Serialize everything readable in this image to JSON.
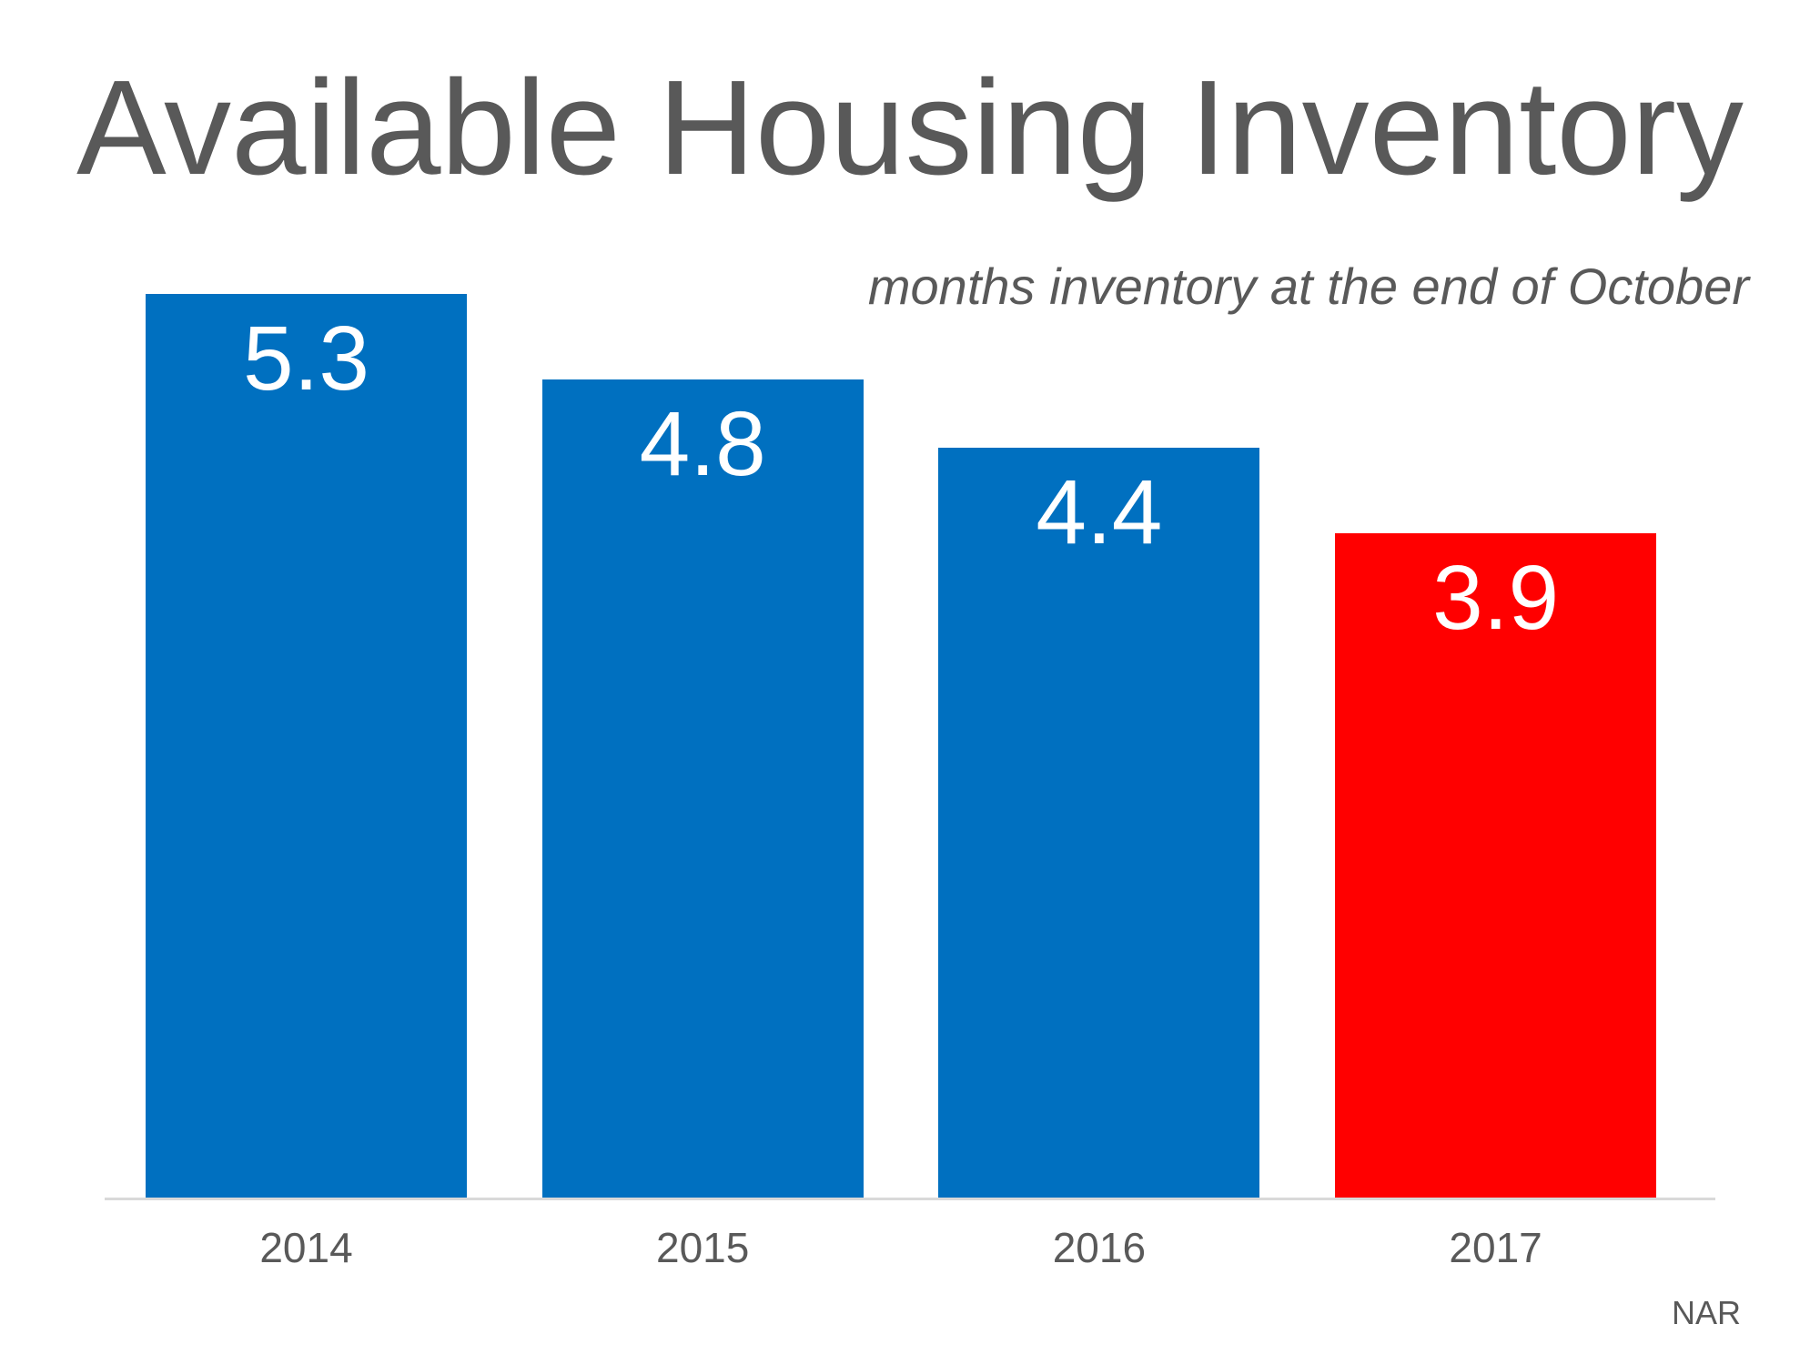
{
  "title": "Available Housing Inventory",
  "subtitle": "months inventory at the end of October",
  "source": "NAR",
  "colors": {
    "bar_blue": "#0070C0",
    "bar_red": "#FF0000",
    "text_gray": "#595959",
    "axis_line": "#D9D9D9",
    "value_label": "#FFFFFF",
    "background": "#FFFFFF"
  },
  "chart_data": {
    "type": "bar",
    "title": "Available Housing Inventory",
    "subtitle": "months inventory at the end of October",
    "categories": [
      "2014",
      "2015",
      "2016",
      "2017"
    ],
    "values": [
      5.3,
      4.8,
      4.4,
      3.9
    ],
    "data_labels": [
      "5.3",
      "4.8",
      "4.4",
      "3.9"
    ],
    "bar_colors": [
      "#0070C0",
      "#0070C0",
      "#0070C0",
      "#FF0000"
    ],
    "xlabel": "",
    "ylabel": "",
    "ylim": [
      0,
      5.65
    ],
    "grid": false,
    "legend": false,
    "y_axis_visible": false,
    "data_label_position": "inside-top",
    "source": "NAR"
  }
}
